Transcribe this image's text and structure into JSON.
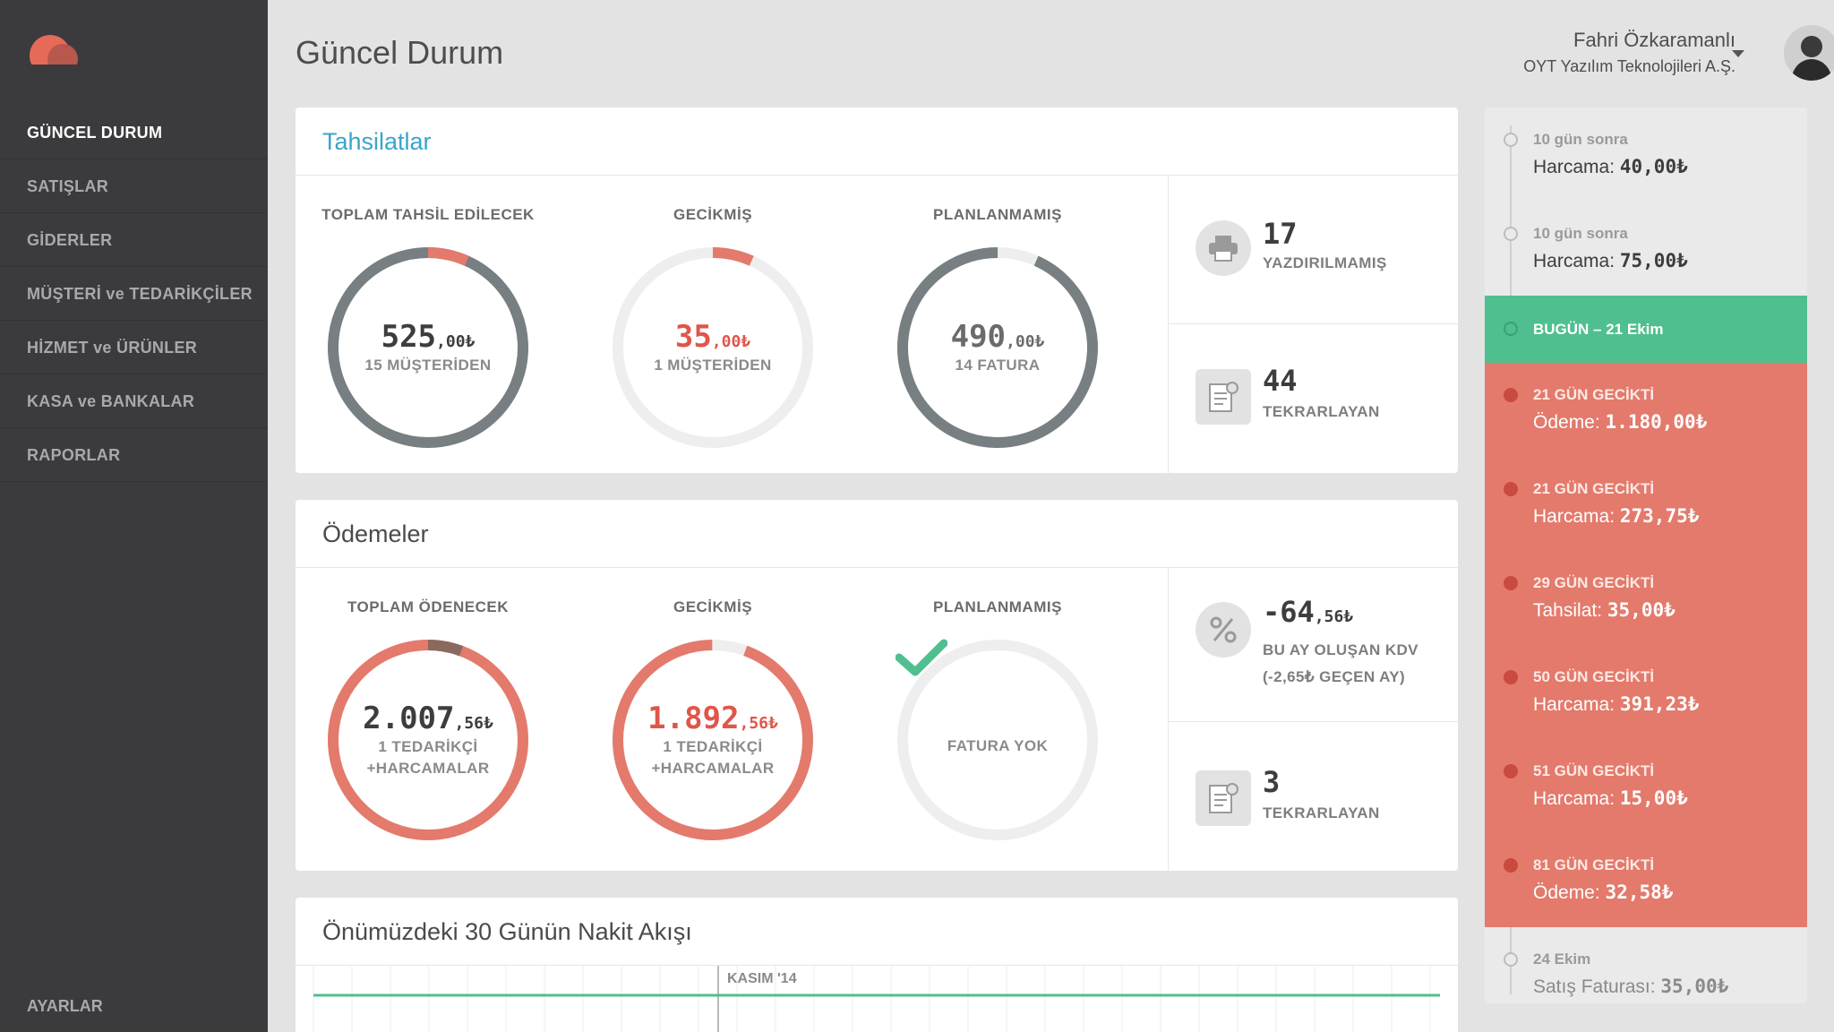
{
  "page": {
    "title": "Güncel Durum"
  },
  "sidebar": {
    "items": [
      {
        "label": "GÜNCEL DURUM"
      },
      {
        "label": "SATIŞLAR"
      },
      {
        "label": "GİDERLER"
      },
      {
        "label": "MÜŞTERİ ve TEDARİKÇİLER"
      },
      {
        "label": "HİZMET ve ÜRÜNLER"
      },
      {
        "label": "KASA ve BANKALAR"
      },
      {
        "label": "RAPORLAR"
      }
    ],
    "settings_label": "AYARLAR"
  },
  "user": {
    "name": "Fahri Özkaramanlı",
    "company": "OYT Yazılım Teknolojileri A.Ş."
  },
  "colors": {
    "accent_red": "#e37a6c",
    "red_text": "#e0564a",
    "green": "#4fbf8f",
    "blue": "#3aa5c9",
    "ring_grey": "#777f82"
  },
  "tahsilatlar": {
    "title": "Tahsilatlar",
    "gauges": [
      {
        "label": "TOPLAM TAHSİL EDİLECEK",
        "amount": "525",
        "decimal": ",00₺",
        "sub": "15 MÜŞTERİDEN",
        "fill_fraction": 0.067
      },
      {
        "label": "GECİKMİŞ",
        "amount": "35",
        "decimal": ",00₺",
        "sub": "1 MÜŞTERİDEN",
        "fill_fraction": 0.067
      },
      {
        "label": "PLANLANMAMIŞ",
        "amount": "490",
        "decimal": ",00₺",
        "sub": "14 FATURA",
        "fill_fraction": 0.933
      }
    ],
    "stats": [
      {
        "icon": "printer-icon",
        "number": "17",
        "label": "YAZDIRILMAMIŞ"
      },
      {
        "icon": "recurring-document-icon",
        "number": "44",
        "label": "TEKRARLAYAN"
      }
    ]
  },
  "odemeler": {
    "title": "Ödemeler",
    "gauges": [
      {
        "label": "TOPLAM ÖDENECEK",
        "amount": "2.007",
        "decimal": ",56₺",
        "sub1": "1 TEDARİKÇİ",
        "sub2": "+HARCAMALAR",
        "fill_fraction": 0.057
      },
      {
        "label": "GECİKMİŞ",
        "amount": "1.892",
        "decimal": ",56₺",
        "sub1": "1 TEDARİKÇİ",
        "sub2": "+HARCAMALAR",
        "fill_fraction": 0.943
      },
      {
        "label": "PLANLANMAMIŞ",
        "sub": "FATURA YOK",
        "icon": "check-icon"
      }
    ],
    "kdv": {
      "icon": "percent-icon",
      "amount": "-64",
      "decimal": ",56₺",
      "line1": "BU AY OLUŞAN KDV",
      "line2": "(-2,65₺ GEÇEN AY)"
    },
    "recurring": {
      "icon": "recurring-document-icon",
      "number": "3",
      "label": "TEKRARLAYAN"
    }
  },
  "nakit": {
    "title": "Önümüzdeki 30 Günün Nakit Akışı",
    "month_label": "KASIM '14"
  },
  "timeline": {
    "today_label": "BUGÜN – 21 Ekim",
    "upcoming": [
      {
        "when": "10 gün sonra",
        "kind": "Harcama:",
        "amount": "40,00₺"
      },
      {
        "when": "10 gün sonra",
        "kind": "Harcama:",
        "amount": "75,00₺"
      }
    ],
    "late": [
      {
        "when": "21 GÜN GECİKTİ",
        "kind": "Ödeme:",
        "amount": "1.180,00₺"
      },
      {
        "when": "21 GÜN GECİKTİ",
        "kind": "Harcama:",
        "amount": "273,75₺"
      },
      {
        "when": "29 GÜN GECİKTİ",
        "kind": "Tahsilat:",
        "amount": "35,00₺"
      },
      {
        "when": "50 GÜN GECİKTİ",
        "kind": "Harcama:",
        "amount": "391,23₺"
      },
      {
        "when": "51 GÜN GECİKTİ",
        "kind": "Harcama:",
        "amount": "15,00₺"
      },
      {
        "when": "81 GÜN GECİKTİ",
        "kind": "Ödeme:",
        "amount": "32,58₺"
      }
    ],
    "past": [
      {
        "when": "24 Ekim",
        "kind": "Satış Faturası:",
        "amount": "35,00₺"
      }
    ]
  }
}
